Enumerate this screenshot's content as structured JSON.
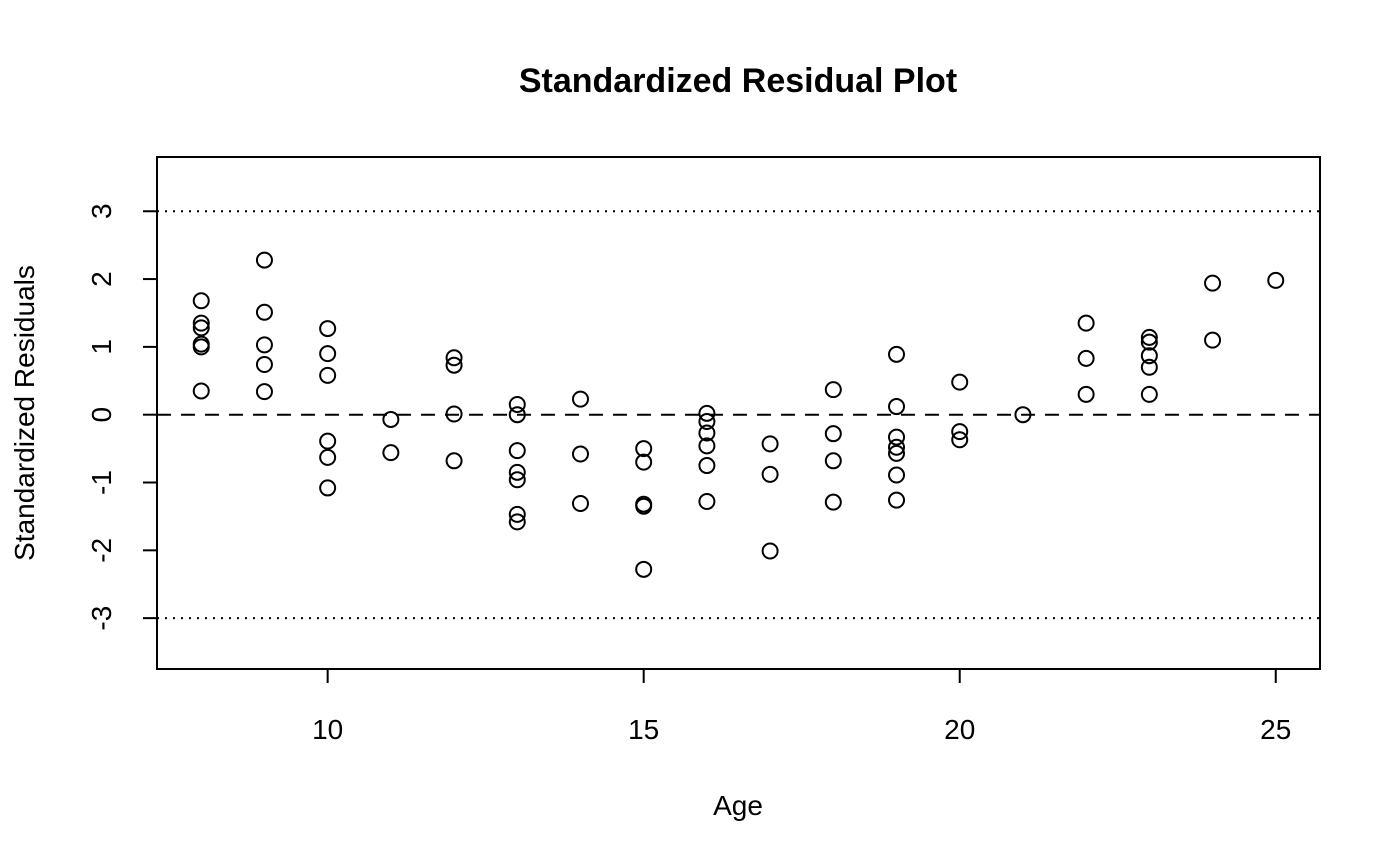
{
  "chart_data": {
    "type": "scatter",
    "title": "Standardized Residual Plot",
    "xlabel": "Age",
    "ylabel": "Standardized Residuals",
    "xlim": [
      7.3,
      25.7
    ],
    "ylim": [
      -3.75,
      3.8
    ],
    "xticks": [
      10,
      15,
      20,
      25
    ],
    "yticks": [
      -3,
      -2,
      -1,
      0,
      1,
      2,
      3
    ],
    "grid": false,
    "legend": "none",
    "reference_lines": [
      {
        "y": 3,
        "style": "dotted"
      },
      {
        "y": 0,
        "style": "dashed"
      },
      {
        "y": -3,
        "style": "dotted"
      }
    ],
    "points": [
      {
        "x": 8,
        "y": 1.68
      },
      {
        "x": 8,
        "y": 1.35
      },
      {
        "x": 8,
        "y": 1.28
      },
      {
        "x": 8,
        "y": 1.04
      },
      {
        "x": 8,
        "y": 1.0
      },
      {
        "x": 8,
        "y": 0.35
      },
      {
        "x": 9,
        "y": 2.28
      },
      {
        "x": 9,
        "y": 1.51
      },
      {
        "x": 9,
        "y": 1.03
      },
      {
        "x": 9,
        "y": 0.74
      },
      {
        "x": 9,
        "y": 0.34
      },
      {
        "x": 10,
        "y": 1.27
      },
      {
        "x": 10,
        "y": 0.9
      },
      {
        "x": 10,
        "y": 0.58
      },
      {
        "x": 10,
        "y": -0.39
      },
      {
        "x": 10,
        "y": -0.63
      },
      {
        "x": 10,
        "y": -1.08
      },
      {
        "x": 11,
        "y": -0.07
      },
      {
        "x": 11,
        "y": -0.56
      },
      {
        "x": 12,
        "y": 0.84
      },
      {
        "x": 12,
        "y": 0.73
      },
      {
        "x": 12,
        "y": 0.01
      },
      {
        "x": 12,
        "y": -0.68
      },
      {
        "x": 13,
        "y": 0.15
      },
      {
        "x": 13,
        "y": 0.0
      },
      {
        "x": 13,
        "y": -0.53
      },
      {
        "x": 13,
        "y": -0.85
      },
      {
        "x": 13,
        "y": -0.96
      },
      {
        "x": 13,
        "y": -1.47
      },
      {
        "x": 13,
        "y": -1.58
      },
      {
        "x": 14,
        "y": 0.23
      },
      {
        "x": 14,
        "y": -0.58
      },
      {
        "x": 14,
        "y": -1.31
      },
      {
        "x": 15,
        "y": -0.5
      },
      {
        "x": 15,
        "y": -0.7
      },
      {
        "x": 15,
        "y": -1.32
      },
      {
        "x": 15,
        "y": -1.35
      },
      {
        "x": 15,
        "y": -2.28
      },
      {
        "x": 16,
        "y": 0.02
      },
      {
        "x": 16,
        "y": -0.1
      },
      {
        "x": 16,
        "y": -0.27
      },
      {
        "x": 16,
        "y": -0.46
      },
      {
        "x": 16,
        "y": -0.75
      },
      {
        "x": 16,
        "y": -1.28
      },
      {
        "x": 17,
        "y": -0.43
      },
      {
        "x": 17,
        "y": -0.88
      },
      {
        "x": 17,
        "y": -2.01
      },
      {
        "x": 18,
        "y": 0.37
      },
      {
        "x": 18,
        "y": -0.28
      },
      {
        "x": 18,
        "y": -0.68
      },
      {
        "x": 18,
        "y": -1.29
      },
      {
        "x": 19,
        "y": 0.89
      },
      {
        "x": 19,
        "y": 0.12
      },
      {
        "x": 19,
        "y": -0.33
      },
      {
        "x": 19,
        "y": -0.48
      },
      {
        "x": 19,
        "y": -0.57
      },
      {
        "x": 19,
        "y": -0.89
      },
      {
        "x": 19,
        "y": -1.26
      },
      {
        "x": 20,
        "y": 0.48
      },
      {
        "x": 20,
        "y": -0.25
      },
      {
        "x": 20,
        "y": -0.37
      },
      {
        "x": 21,
        "y": 0.0
      },
      {
        "x": 22,
        "y": 1.35
      },
      {
        "x": 22,
        "y": 0.83
      },
      {
        "x": 22,
        "y": 0.3
      },
      {
        "x": 23,
        "y": 1.14
      },
      {
        "x": 23,
        "y": 1.07
      },
      {
        "x": 23,
        "y": 0.87
      },
      {
        "x": 23,
        "y": 0.7
      },
      {
        "x": 23,
        "y": 0.3
      },
      {
        "x": 24,
        "y": 1.94
      },
      {
        "x": 24,
        "y": 1.1
      },
      {
        "x": 25,
        "y": 1.98
      }
    ]
  }
}
